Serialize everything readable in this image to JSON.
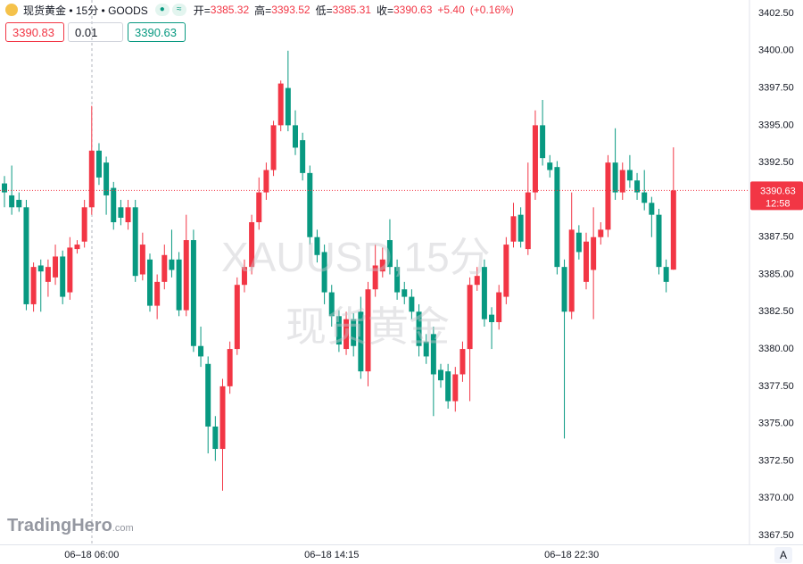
{
  "header": {
    "title": "现货黄金 • 15分 • GOODS",
    "open_label": "开=",
    "high_label": "高=",
    "low_label": "低=",
    "close_label": "收=",
    "change": "+5.40",
    "change_pct": "(+0.16%)"
  },
  "toolbar": {
    "sell": "3390.83",
    "quantity": "0.01",
    "buy": "3390.63"
  },
  "watermark": {
    "symbol": "XAUUSD,15分",
    "name": "现货黄金"
  },
  "logo": {
    "brand": "TradingHero",
    "suffix": ".com"
  },
  "countdown": "12:58",
  "scale_button": "A",
  "chart_data": {
    "type": "candlestick",
    "categories": [
      null,
      null,
      null,
      null,
      null,
      null,
      null,
      null,
      null,
      null,
      null,
      null,
      "06–18 06:00",
      null,
      null,
      null,
      null,
      null,
      null,
      null,
      null,
      null,
      null,
      null,
      null,
      null,
      null,
      null,
      null,
      null,
      null,
      null,
      null,
      null,
      null,
      null,
      null,
      null,
      null,
      null,
      null,
      null,
      null,
      null,
      null,
      "06–18 14:15",
      null,
      null,
      null,
      null,
      null,
      null,
      null,
      null,
      null,
      null,
      null,
      null,
      null,
      null,
      null,
      null,
      null,
      null,
      null,
      null,
      null,
      null,
      null,
      null,
      null,
      null,
      null,
      null,
      null,
      null,
      null,
      null,
      "06–18 22:30",
      null,
      null,
      null,
      null,
      null,
      null,
      null,
      null,
      null,
      null,
      null,
      null,
      null,
      null
    ],
    "open": [
      3391.1,
      3390.3,
      3390.0,
      3389.5,
      3383.0,
      3385.6,
      3384.5,
      3384.8,
      3386.2,
      3383.8,
      3386.7,
      3387.2,
      3389.5,
      3393.3,
      3392.5,
      3390.8,
      3389.5,
      3388.5,
      3389.5,
      3385.0,
      3386.0,
      3382.9,
      3384.5,
      3386.0,
      3386.0,
      3382.6,
      3387.3,
      3380.2,
      3379.0,
      3374.8,
      3373.3,
      3377.5,
      3380.0,
      3384.3,
      3385.5,
      3388.5,
      3390.5,
      3392.0,
      3395.0,
      3397.5,
      3395.0,
      3394.0,
      3391.8,
      3387.5,
      3386.5,
      3383.8,
      3382.2,
      3380.0,
      3382.0,
      3382.5,
      3378.5,
      3384.0,
      3385.2,
      3387.3,
      3385.5,
      3384.0,
      3383.5,
      3382.5,
      3380.5,
      3381.0,
      3378.6,
      3378.5,
      3376.5,
      3378.3,
      3380.0,
      3384.3,
      3385.5,
      3382.3,
      3381.8,
      3383.5,
      3387.2,
      3389.0,
      3386.7,
      3390.5,
      3395.0,
      3392.5,
      3392.2,
      3385.5,
      3382.5,
      3387.8,
      3384.5,
      3385.3,
      3387.5,
      3388.0,
      3392.5,
      3390.5,
      3392.0,
      3391.3,
      3390.5,
      3389.8,
      3389.0,
      3385.5,
      3385.32
    ],
    "high": [
      3391.6,
      3392.3,
      3390.5,
      3390.0,
      3385.8,
      3386.0,
      3386.0,
      3387.0,
      3386.6,
      3387.5,
      3387.3,
      3390.0,
      3396.3,
      3393.8,
      3392.9,
      3391.2,
      3390.0,
      3390.0,
      3390.0,
      3387.8,
      3386.4,
      3385.0,
      3387.0,
      3388.0,
      3386.5,
      3389.0,
      3388.0,
      3381.5,
      3379.5,
      3375.5,
      3378.0,
      3380.5,
      3384.8,
      3386.0,
      3389.0,
      3391.5,
      3392.5,
      3395.3,
      3398.0,
      3400.0,
      3396.0,
      3394.5,
      3392.3,
      3388.0,
      3387.0,
      3384.3,
      3382.6,
      3382.5,
      3382.4,
      3383.5,
      3384.5,
      3387.0,
      3386.8,
      3388.7,
      3386.0,
      3384.5,
      3384.0,
      3383.0,
      3381.0,
      3381.5,
      3379.0,
      3379.0,
      3378.8,
      3380.5,
      3384.8,
      3385.5,
      3386.0,
      3382.8,
      3384.3,
      3387.5,
      3389.8,
      3389.5,
      3392.5,
      3396.0,
      3396.7,
      3393.0,
      3392.6,
      3386.0,
      3390.5,
      3388.3,
      3387.8,
      3389.5,
      3388.5,
      3393.0,
      3394.8,
      3392.5,
      3393.0,
      3391.8,
      3392.0,
      3390.2,
      3389.4,
      3386.0,
      3393.52
    ],
    "low": [
      3389.5,
      3389.0,
      3389.2,
      3382.6,
      3382.5,
      3382.5,
      3383.5,
      3384.3,
      3383.0,
      3383.3,
      3386.4,
      3386.8,
      3389.0,
      3391.0,
      3389.0,
      3388.0,
      3388.3,
      3388.0,
      3384.5,
      3384.6,
      3382.5,
      3382.0,
      3384.0,
      3384.8,
      3382.2,
      3382.2,
      3379.8,
      3378.8,
      3373.0,
      3372.5,
      3370.5,
      3377.0,
      3379.6,
      3383.8,
      3385.0,
      3388.0,
      3390.0,
      3391.6,
      3394.6,
      3394.6,
      3393.0,
      3391.3,
      3387.0,
      3385.8,
      3383.0,
      3381.5,
      3379.8,
      3379.6,
      3379.5,
      3378.0,
      3377.5,
      3383.5,
      3384.8,
      3385.0,
      3383.3,
      3383.0,
      3382.0,
      3379.5,
      3379.0,
      3375.5,
      3377.4,
      3376.0,
      3375.8,
      3377.8,
      3376.5,
      3383.9,
      3381.5,
      3380.0,
      3381.3,
      3383.0,
      3386.8,
      3386.8,
      3386.3,
      3390.0,
      3392.3,
      3391.5,
      3385.0,
      3374.0,
      3382.0,
      3386.0,
      3384.0,
      3382.0,
      3387.0,
      3387.5,
      3390.0,
      3390.0,
      3390.8,
      3390.0,
      3389.3,
      3387.5,
      3385.0,
      3383.8,
      3385.31
    ],
    "close": [
      3390.5,
      3389.5,
      3389.5,
      3383.0,
      3385.5,
      3385.2,
      3385.5,
      3386.2,
      3383.5,
      3386.8,
      3387.0,
      3389.5,
      3393.3,
      3391.5,
      3390.3,
      3388.5,
      3388.8,
      3389.5,
      3384.9,
      3387.0,
      3382.9,
      3384.5,
      3386.3,
      3385.3,
      3382.6,
      3387.3,
      3380.2,
      3379.5,
      3374.8,
      3373.3,
      3377.5,
      3380.0,
      3384.3,
      3385.5,
      3388.5,
      3390.5,
      3392.0,
      3395.0,
      3397.8,
      3395.0,
      3393.5,
      3391.8,
      3387.5,
      3386.3,
      3383.8,
      3382.2,
      3380.3,
      3382.0,
      3380.2,
      3378.5,
      3384.0,
      3385.6,
      3386.0,
      3385.5,
      3383.8,
      3383.5,
      3382.5,
      3380.2,
      3379.5,
      3378.3,
      3377.9,
      3376.5,
      3378.3,
      3380.0,
      3384.3,
      3384.9,
      3382.0,
      3381.8,
      3383.8,
      3387.0,
      3388.9,
      3387.2,
      3390.5,
      3395.0,
      3392.8,
      3392.0,
      3385.5,
      3382.5,
      3388.0,
      3386.5,
      3387.2,
      3387.5,
      3388.0,
      3392.5,
      3390.5,
      3392.0,
      3391.3,
      3390.5,
      3389.8,
      3389.0,
      3385.5,
      3384.5,
      3390.63
    ],
    "up_color": "#f23645",
    "down_color": "#089981",
    "ylim": [
      3366.9,
      3403.4
    ],
    "yticks": [
      {
        "value": 3402.5,
        "label": "3402.50"
      },
      {
        "value": 3400,
        "label": "3400.00"
      },
      {
        "value": 3397.5,
        "label": "3397.50"
      },
      {
        "value": 3395,
        "label": "3395.00"
      },
      {
        "value": 3392.5,
        "label": "3392.50"
      },
      {
        "value": 3390,
        "label": "3390.00"
      },
      {
        "value": 3387.5,
        "label": "3387.50"
      },
      {
        "value": 3385,
        "label": "3385.00"
      },
      {
        "value": 3382.5,
        "label": "3382.50"
      },
      {
        "value": 3380,
        "label": "3380.00"
      },
      {
        "value": 3377.5,
        "label": "3377.50"
      },
      {
        "value": 3375,
        "label": "3375.00"
      },
      {
        "value": 3372.5,
        "label": "3372.50"
      },
      {
        "value": 3370,
        "label": "3370.00"
      },
      {
        "value": 3367.5,
        "label": "3367.50"
      }
    ],
    "grid": false
  }
}
